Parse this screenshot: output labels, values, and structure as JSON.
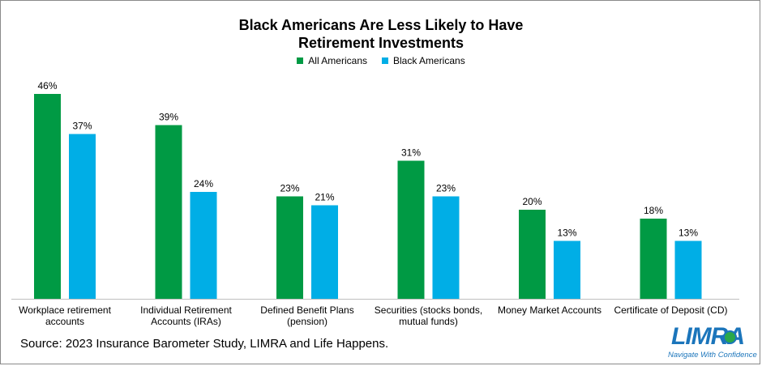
{
  "chart_data": {
    "type": "bar",
    "title_lines": [
      "Black Americans Are Less Likely to Have",
      "Retirement Investments"
    ],
    "categories": [
      [
        "Workplace retirement",
        "accounts"
      ],
      [
        "Individual Retirement",
        "Accounts (IRAs)"
      ],
      [
        "Defined Benefit Plans",
        "(pension)"
      ],
      [
        "Securities (stocks bonds,",
        "mutual funds)"
      ],
      [
        "Money Market Accounts"
      ],
      [
        "Certificate of Deposit (CD)"
      ]
    ],
    "series": [
      {
        "name": "All Americans",
        "color": "#009a44",
        "values": [
          46,
          39,
          23,
          31,
          20,
          18
        ]
      },
      {
        "name": "Black Americans",
        "color": "#00aee6",
        "values": [
          37,
          24,
          21,
          23,
          13,
          13
        ]
      }
    ],
    "value_suffix": "%",
    "ylim": [
      0,
      50
    ],
    "legend_position": "top-center",
    "grid": false
  },
  "source": "Source: 2023 Insurance Barometer Study, LIMRA and Life Happens.",
  "logo": {
    "wordmark": "LIMRA",
    "tagline": "Navigate With Confidence",
    "color": "#1b75bb"
  }
}
